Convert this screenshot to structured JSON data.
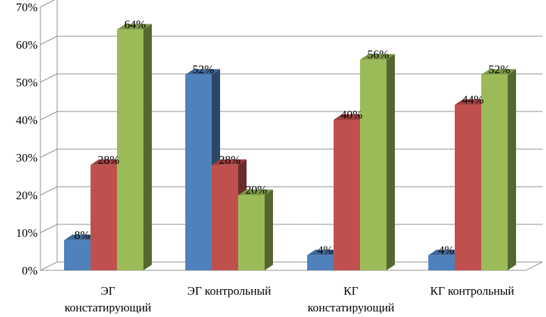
{
  "chart_data": {
    "type": "bar",
    "title": "",
    "xlabel": "",
    "ylabel": "",
    "ylim": [
      0,
      70
    ],
    "y_ticks": [
      0,
      10,
      20,
      30,
      40,
      50,
      60,
      70
    ],
    "y_tick_labels": [
      "0%",
      "10%",
      "20%",
      "30%",
      "40%",
      "50%",
      "60%",
      "70%"
    ],
    "grid": true,
    "legend": "none",
    "three_d": true,
    "categories": [
      [
        "ЭГ",
        "констатирующий"
      ],
      [
        "ЭГ контрольный"
      ],
      [
        "КГ",
        "констатирующий"
      ],
      [
        "КГ контрольный"
      ]
    ],
    "series": [
      {
        "color": "#4f81bd",
        "values": [
          8,
          52,
          4,
          4
        ],
        "labels": [
          "8%",
          "52%",
          "4%",
          "4%"
        ]
      },
      {
        "color": "#c0504d",
        "values": [
          28,
          28,
          40,
          44
        ],
        "labels": [
          "28%",
          "28%",
          "40%",
          "44%"
        ]
      },
      {
        "color": "#9bbb59",
        "values": [
          64,
          20,
          56,
          52
        ],
        "labels": [
          "64%",
          "20%",
          "56%",
          "52%"
        ]
      }
    ]
  }
}
